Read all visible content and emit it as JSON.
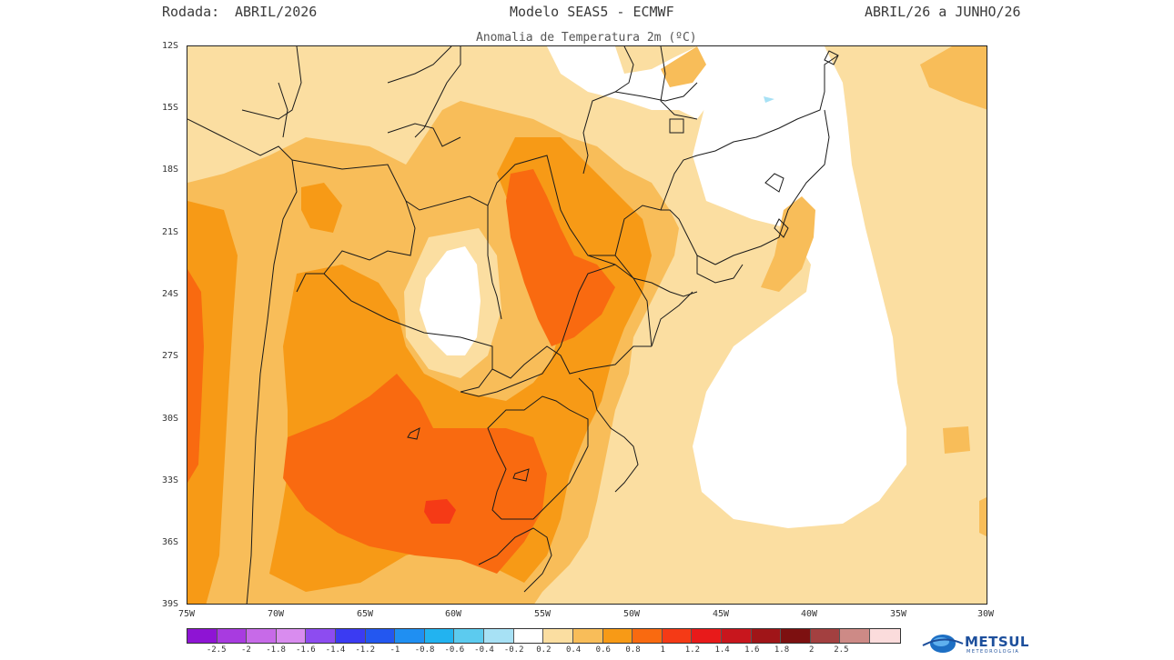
{
  "header": {
    "run_label": "Rodada:",
    "run_value": "ABRIL/2026",
    "model": "Modelo SEAS5 - ECMWF",
    "period": "ABRIL/26 a JUNHO/26",
    "subtitle": "Anomalia de Temperatura 2m (ºC)"
  },
  "axes": {
    "lat_labels": [
      "12S",
      "15S",
      "18S",
      "21S",
      "24S",
      "27S",
      "30S",
      "33S",
      "36S",
      "39S"
    ],
    "lon_labels": [
      "75W",
      "70W",
      "65W",
      "60W",
      "55W",
      "50W",
      "45W",
      "40W",
      "35W",
      "30W"
    ]
  },
  "colorbar": {
    "colors": [
      "#8e14d4",
      "#a83be0",
      "#c76ae8",
      "#d98cef",
      "#8d4cf0",
      "#3b3bf2",
      "#2357f0",
      "#1f8ff2",
      "#22b3f0",
      "#5ccbef",
      "#a7e1f5",
      "#ffffff",
      "#fbdea1",
      "#f8bd59",
      "#f79a16",
      "#f96a10",
      "#f53a16",
      "#e81a1a",
      "#c8161d",
      "#a01518",
      "#7d1010",
      "#a34040",
      "#cd8a86",
      "#fbdcdc"
    ],
    "labels": [
      "-2.5",
      "-2",
      "-1.8",
      "-1.6",
      "-1.4",
      "-1.2",
      "-1",
      "-0.8",
      "-0.6",
      "-0.4",
      "-0.2",
      "0.2",
      "0.4",
      "0.6",
      "0.8",
      "1",
      "1.2",
      "1.4",
      "1.6",
      "1.8",
      "2",
      "2.5"
    ]
  },
  "legend_levels": {
    "level_0_4": "#fbdea1",
    "level_0_6": "#f8bd59",
    "level_0_8": "#f79a16",
    "level_1_0": "#f96a10",
    "level_1_2": "#f53a16",
    "neutral": "#ffffff"
  },
  "logo": {
    "name": "METSUL",
    "tagline": "METEOROLOGIA"
  }
}
